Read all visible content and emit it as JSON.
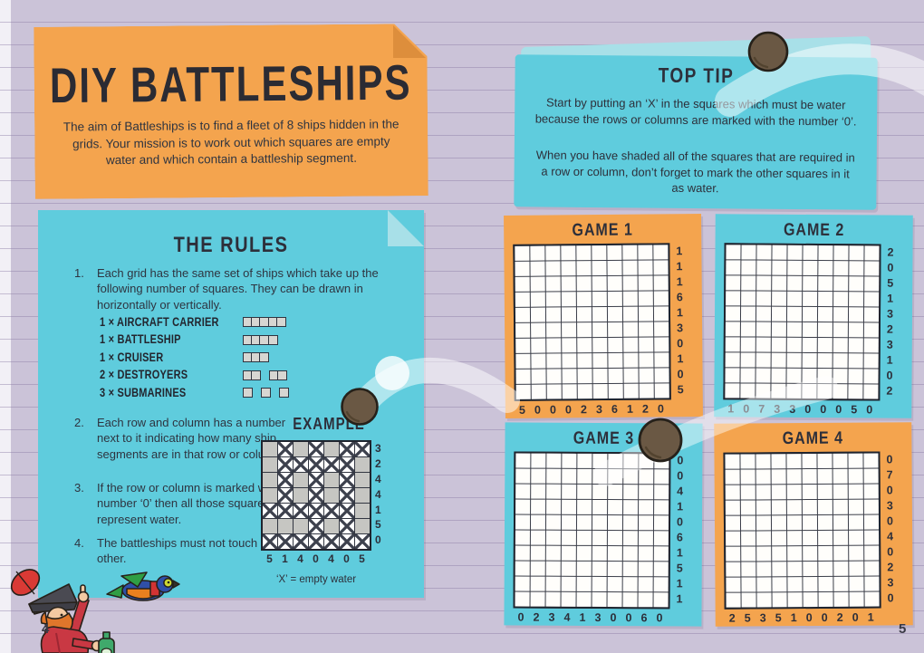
{
  "page": {
    "left_page_number": "4",
    "right_page_number": "5"
  },
  "title_note": {
    "title": "DIY BATTLESHIPS",
    "intro": "The aim of Battleships is to find a fleet of 8 ships hidden in the grids. Your mission is to work out which squares are empty water and which contain a battleship segment."
  },
  "top_tip": {
    "title": "TOP TIP",
    "para1": "Start by putting an ‘X’ in the squares which must be water because the rows or columns are marked with the number ‘0’.",
    "para2": "When you have shaded all of the squares that are required in a row or column, don’t forget to mark the other squares in it as water."
  },
  "rules": {
    "title": "THE RULES",
    "items": [
      {
        "num": "1.",
        "text": "Each grid has the same set of ships which take up the following number of squares. They can be drawn in horizontally or vertically."
      },
      {
        "num": "2.",
        "text": "Each row and column has a number next to it indicating how many ship segments are in that row or column."
      },
      {
        "num": "3.",
        "text": "If the row or column is marked with the number ‘0’ then all those squares represent water."
      },
      {
        "num": "4.",
        "text": "The battleships must not touch each other."
      }
    ],
    "ships": [
      {
        "label": "1 × AIRCRAFT CARRIER",
        "groups": [
          5
        ]
      },
      {
        "label": "1 × BATTLESHIP",
        "groups": [
          4
        ]
      },
      {
        "label": "1 × CRUISER",
        "groups": [
          3
        ]
      },
      {
        "label": "2 × DESTROYERS",
        "groups": [
          2,
          2
        ]
      },
      {
        "label": "3 × SUBMARINES",
        "groups": [
          1,
          1,
          1
        ]
      }
    ],
    "example": {
      "title": "EXAMPLE",
      "caption": "‘X’ = empty water",
      "row_labels": [
        "3",
        "2",
        "4",
        "4",
        "1",
        "5",
        "0"
      ],
      "col_labels": [
        "5",
        "1",
        "4",
        "0",
        "4",
        "0",
        "5"
      ],
      "rows": [
        "SXSXSXX",
        "SXXXXXS",
        "SXSXSXS",
        "SXSXSXS",
        "XXXXXXS",
        "SSSXSXS",
        "XXXXXXX"
      ]
    }
  },
  "games": [
    {
      "title": "GAME 1",
      "grid_size": 10,
      "row_labels": [
        "1",
        "1",
        "1",
        "6",
        "1",
        "3",
        "0",
        "1",
        "0",
        "5"
      ],
      "col_labels": [
        "5",
        "0",
        "0",
        "0",
        "2",
        "3",
        "6",
        "1",
        "2",
        "0"
      ]
    },
    {
      "title": "GAME 2",
      "grid_size": 10,
      "row_labels": [
        "2",
        "0",
        "5",
        "1",
        "3",
        "2",
        "3",
        "1",
        "0",
        "2"
      ],
      "col_labels": [
        "1",
        "0",
        "7",
        "3",
        "3",
        "0",
        "0",
        "0",
        "5",
        "0"
      ]
    },
    {
      "title": "GAME 3",
      "grid_size": 10,
      "row_labels": [
        "0",
        "0",
        "4",
        "1",
        "0",
        "6",
        "1",
        "5",
        "1",
        "1"
      ],
      "col_labels": [
        "0",
        "2",
        "3",
        "4",
        "1",
        "3",
        "0",
        "0",
        "6",
        "0"
      ]
    },
    {
      "title": "GAME 4",
      "grid_size": 10,
      "row_labels": [
        "0",
        "7",
        "0",
        "3",
        "0",
        "4",
        "0",
        "2",
        "3",
        "0"
      ],
      "col_labels": [
        "2",
        "5",
        "3",
        "5",
        "1",
        "0",
        "0",
        "2",
        "0",
        "1"
      ]
    }
  ],
  "colors": {
    "paper": "#cbc3d8",
    "note_orange": "#f4a44e",
    "note_orange_fold": "#dd8e3c",
    "note_blue": "#5fccdd",
    "note_blue_light": "#a8e0e8",
    "ink": "#2d2f3a",
    "ship_square": "#d7d6d2",
    "example_ship": "#c6c6c2",
    "cannonball": "#6a5844"
  }
}
